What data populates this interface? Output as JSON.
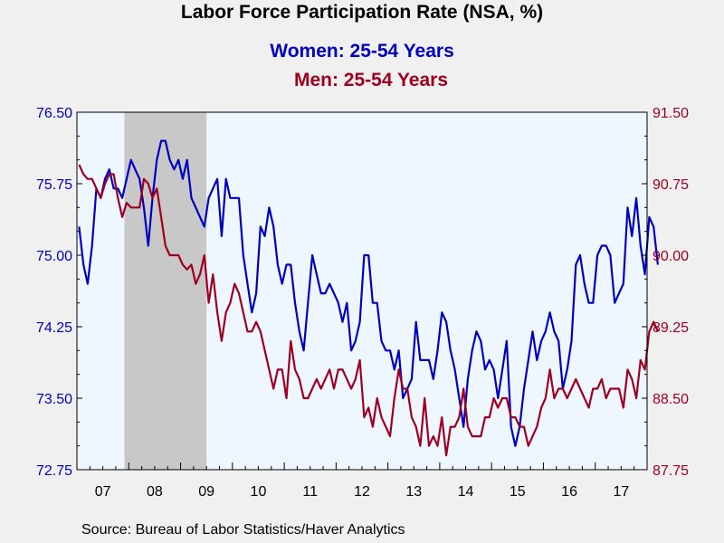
{
  "title": "Labor Force Participation Rate (NSA, %)",
  "source": "Source:  Bureau of Labor Statistics/Haver Analytics",
  "colors": {
    "women": "#0000c0",
    "men": "#a00020",
    "plot_bg": "#eef6ff",
    "recession": "#c8c8c8",
    "page_bg": "#f0f0f0"
  },
  "chart_data": {
    "type": "line",
    "title": "Labor Force Participation Rate (NSA, %)",
    "x_axis": {
      "labels": [
        "07",
        "08",
        "09",
        "10",
        "11",
        "12",
        "13",
        "14",
        "15",
        "16",
        "17"
      ],
      "range": [
        "2007-01",
        "2017-12"
      ]
    },
    "left_axis": {
      "ylim": [
        72.75,
        76.5
      ],
      "ticks": [
        "76.50",
        "75.75",
        "75.00",
        "74.25",
        "73.50",
        "72.75"
      ]
    },
    "right_axis": {
      "ylim": [
        87.75,
        91.5
      ],
      "ticks": [
        "91.50",
        "90.75",
        "90.00",
        "89.25",
        "88.50",
        "87.75"
      ]
    },
    "shaded_period": [
      "2007-12",
      "2009-06"
    ],
    "grid": false,
    "series": [
      {
        "name": "Women: 25-54 Years",
        "axis": "left",
        "start": "2007-01",
        "values": [
          75.3,
          74.9,
          74.7,
          75.1,
          75.7,
          75.6,
          75.8,
          75.9,
          75.7,
          75.7,
          75.6,
          75.8,
          76.0,
          75.9,
          75.8,
          75.5,
          75.1,
          75.6,
          76.0,
          76.2,
          76.2,
          76.0,
          75.9,
          76.0,
          75.8,
          76.0,
          75.6,
          75.5,
          75.4,
          75.3,
          75.6,
          75.7,
          75.8,
          75.2,
          75.8,
          75.6,
          75.6,
          75.6,
          75.0,
          74.7,
          74.4,
          74.6,
          75.3,
          75.2,
          75.5,
          75.3,
          74.9,
          74.7,
          74.9,
          74.9,
          74.5,
          74.2,
          74.0,
          74.5,
          75.0,
          74.8,
          74.6,
          74.6,
          74.7,
          74.6,
          74.5,
          74.3,
          74.5,
          74.0,
          74.1,
          74.3,
          75.0,
          75.0,
          74.5,
          74.5,
          74.1,
          74.0,
          74.0,
          73.8,
          74.0,
          73.5,
          73.6,
          73.7,
          74.3,
          73.9,
          73.9,
          73.9,
          73.7,
          74.0,
          74.4,
          74.3,
          74.0,
          73.8,
          73.5,
          73.2,
          73.7,
          74.0,
          74.2,
          74.1,
          73.8,
          73.9,
          73.8,
          73.5,
          73.8,
          74.1,
          73.2,
          73.0,
          73.2,
          73.6,
          73.9,
          74.2,
          73.9,
          74.1,
          74.2,
          74.4,
          74.2,
          74.1,
          73.6,
          73.8,
          74.1,
          74.9,
          75.0,
          74.7,
          74.5,
          74.5,
          75.0,
          75.1,
          75.1,
          75.0,
          74.5,
          74.6,
          74.7,
          75.5,
          75.2,
          75.6,
          75.1,
          74.8,
          75.4,
          75.3,
          74.9
        ]
      },
      {
        "name": "Men: 25-54 Years",
        "axis": "right",
        "start": "2007-01",
        "values": [
          90.95,
          90.85,
          90.8,
          90.8,
          90.7,
          90.6,
          90.75,
          90.85,
          90.85,
          90.6,
          90.4,
          90.55,
          90.5,
          90.5,
          90.5,
          90.8,
          90.75,
          90.6,
          90.7,
          90.4,
          90.1,
          90.0,
          90.0,
          90.0,
          89.9,
          89.85,
          89.9,
          89.7,
          89.8,
          90.0,
          89.5,
          89.8,
          89.4,
          89.1,
          89.4,
          89.5,
          89.7,
          89.6,
          89.4,
          89.2,
          89.2,
          89.3,
          89.2,
          89.0,
          88.8,
          88.6,
          88.8,
          88.8,
          88.5,
          89.1,
          88.8,
          88.7,
          88.5,
          88.5,
          88.6,
          88.7,
          88.6,
          88.7,
          88.8,
          88.6,
          88.8,
          88.8,
          88.7,
          88.6,
          88.7,
          88.9,
          88.3,
          88.4,
          88.2,
          88.5,
          88.3,
          88.2,
          88.1,
          88.5,
          88.8,
          88.6,
          88.6,
          88.3,
          88.2,
          88.0,
          88.5,
          88.0,
          88.1,
          88.0,
          88.3,
          87.9,
          88.2,
          88.2,
          88.3,
          88.6,
          88.2,
          88.1,
          88.1,
          88.1,
          88.3,
          88.3,
          88.5,
          88.4,
          88.5,
          88.5,
          88.3,
          88.3,
          88.2,
          88.2,
          88.0,
          88.1,
          88.2,
          88.4,
          88.5,
          88.8,
          88.5,
          88.6,
          88.6,
          88.5,
          88.6,
          88.7,
          88.6,
          88.5,
          88.4,
          88.6,
          88.6,
          88.7,
          88.5,
          88.6,
          88.6,
          88.6,
          88.4,
          88.8,
          88.7,
          88.5,
          88.9,
          88.8,
          89.2,
          89.3,
          89.2
        ]
      }
    ]
  }
}
